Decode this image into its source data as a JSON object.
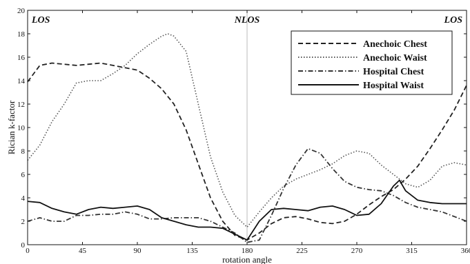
{
  "chart_data": {
    "type": "line",
    "title": "",
    "xlabel": "rotation angle",
    "ylabel": "Rician  k-factor",
    "xlim": [
      0,
      360
    ],
    "ylim": [
      0,
      20
    ],
    "xticks": [
      0,
      45,
      90,
      135,
      180,
      225,
      270,
      315,
      360
    ],
    "yticks": [
      0,
      2,
      4,
      6,
      8,
      10,
      12,
      14,
      16,
      18,
      20
    ],
    "grid": false,
    "legend_position": "top-right",
    "annotations": [
      {
        "text": "LOS",
        "x": 0
      },
      {
        "text": "NLOS",
        "x": 180
      },
      {
        "text": "LOS",
        "x": 360
      }
    ],
    "reference_line_x": 180,
    "series": [
      {
        "name": "Anechoic Chest",
        "line_style": "dashed",
        "color": "#222222",
        "x": [
          0,
          10,
          20,
          30,
          40,
          50,
          60,
          70,
          80,
          90,
          100,
          110,
          120,
          130,
          140,
          150,
          160,
          170,
          180,
          190,
          200,
          210,
          220,
          230,
          240,
          250,
          260,
          270,
          280,
          290,
          300,
          310,
          320,
          330,
          340,
          350,
          360
        ],
        "y": [
          13.9,
          15.3,
          15.5,
          15.4,
          15.3,
          15.4,
          15.5,
          15.3,
          15.1,
          14.9,
          14.2,
          13.3,
          12.0,
          9.8,
          6.9,
          4.0,
          2.0,
          0.8,
          0.4,
          1.0,
          1.8,
          2.3,
          2.4,
          2.2,
          1.9,
          1.8,
          2.0,
          2.6,
          3.4,
          4.1,
          4.7,
          5.6,
          6.7,
          8.2,
          9.8,
          11.5,
          13.6
        ]
      },
      {
        "name": "Anechoic Waist",
        "line_style": "dotted",
        "color": "#555555",
        "x": [
          0,
          10,
          20,
          30,
          40,
          50,
          60,
          70,
          80,
          90,
          100,
          110,
          115,
          120,
          130,
          140,
          150,
          160,
          170,
          180,
          190,
          200,
          210,
          220,
          230,
          240,
          250,
          260,
          270,
          280,
          290,
          300,
          310,
          320,
          330,
          340,
          350,
          360
        ],
        "y": [
          7.2,
          8.5,
          10.5,
          12.0,
          13.8,
          14.0,
          14.0,
          14.6,
          15.3,
          16.3,
          17.1,
          17.8,
          18.0,
          17.8,
          16.5,
          12.0,
          7.5,
          4.5,
          2.5,
          1.5,
          2.8,
          4.0,
          5.0,
          5.6,
          6.0,
          6.4,
          6.9,
          7.6,
          8.0,
          7.8,
          6.8,
          6.0,
          5.2,
          4.9,
          5.5,
          6.7,
          7.0,
          6.8
        ]
      },
      {
        "name": "Hospital Chest",
        "line_style": "dashdot",
        "color": "#333333",
        "x": [
          0,
          10,
          20,
          30,
          40,
          50,
          60,
          70,
          80,
          90,
          100,
          110,
          120,
          130,
          140,
          150,
          160,
          170,
          180,
          190,
          200,
          210,
          220,
          230,
          240,
          250,
          260,
          270,
          280,
          290,
          300,
          310,
          320,
          330,
          340,
          350,
          360
        ],
        "y": [
          2.0,
          2.3,
          2.0,
          2.0,
          2.5,
          2.5,
          2.6,
          2.6,
          2.8,
          2.6,
          2.2,
          2.2,
          2.3,
          2.3,
          2.3,
          2.0,
          1.5,
          1.0,
          0.2,
          0.4,
          2.5,
          4.8,
          6.8,
          8.2,
          7.8,
          6.5,
          5.4,
          4.9,
          4.7,
          4.6,
          4.2,
          3.6,
          3.2,
          3.0,
          2.8,
          2.4,
          2.0
        ]
      },
      {
        "name": "Hospital Waist",
        "line_style": "solid",
        "color": "#111111",
        "x": [
          0,
          10,
          20,
          30,
          40,
          50,
          60,
          70,
          80,
          90,
          100,
          110,
          120,
          130,
          140,
          150,
          160,
          170,
          180,
          190,
          200,
          210,
          220,
          230,
          240,
          250,
          260,
          270,
          280,
          290,
          300,
          305,
          310,
          320,
          330,
          340,
          350,
          360
        ],
        "y": [
          3.7,
          3.6,
          3.1,
          2.8,
          2.6,
          3.0,
          3.2,
          3.1,
          3.2,
          3.3,
          3.0,
          2.3,
          2.0,
          1.7,
          1.5,
          1.5,
          1.4,
          0.9,
          0.4,
          2.0,
          3.0,
          3.1,
          3.0,
          2.9,
          3.2,
          3.3,
          3.0,
          2.5,
          2.6,
          3.5,
          5.0,
          5.5,
          4.6,
          3.8,
          3.6,
          3.5,
          3.5,
          3.5
        ]
      }
    ]
  }
}
